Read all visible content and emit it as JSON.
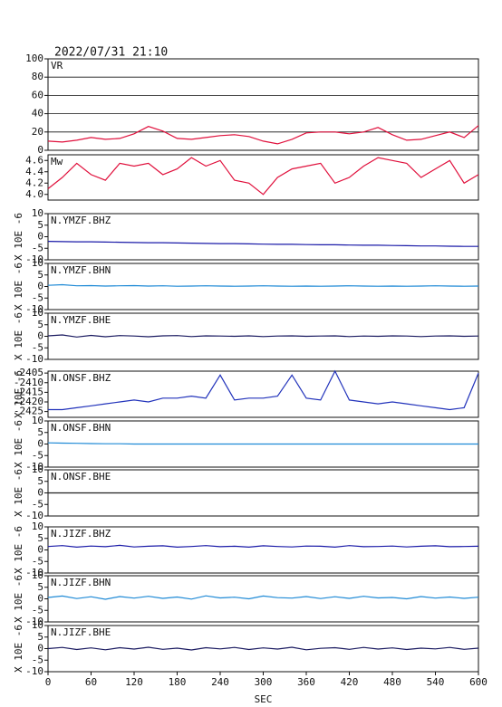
{
  "chart_data": [
    {
      "type": "line",
      "title": "2022/07/31 21:10",
      "label": "VR",
      "color": "#e0103c",
      "grid": true,
      "x": [
        0,
        20,
        40,
        60,
        80,
        100,
        120,
        140,
        160,
        180,
        200,
        220,
        240,
        260,
        280,
        300,
        320,
        340,
        360,
        380,
        400,
        420,
        440,
        460,
        480,
        500,
        520,
        540,
        560,
        580,
        600
      ],
      "values": [
        10,
        9,
        11,
        14,
        12,
        13,
        18,
        26,
        21,
        13,
        12,
        14,
        16,
        17,
        15,
        10,
        7,
        12,
        19,
        20,
        20,
        18,
        20,
        25,
        17,
        11,
        12,
        16,
        20,
        14,
        27
      ],
      "xlim": [
        0,
        600
      ],
      "ylim": [
        0,
        100
      ],
      "yticks": [
        0,
        20,
        40,
        60,
        80,
        100
      ]
    },
    {
      "type": "line",
      "label": "Mw",
      "color": "#e0103c",
      "grid": false,
      "x": [
        0,
        20,
        40,
        60,
        80,
        100,
        120,
        140,
        160,
        180,
        200,
        220,
        240,
        260,
        280,
        300,
        320,
        340,
        360,
        380,
        400,
        420,
        440,
        460,
        480,
        500,
        520,
        540,
        560,
        580,
        600
      ],
      "values": [
        4.1,
        4.3,
        4.55,
        4.35,
        4.25,
        4.55,
        4.5,
        4.55,
        4.35,
        4.45,
        4.65,
        4.5,
        4.6,
        4.25,
        4.2,
        4.0,
        4.3,
        4.45,
        4.5,
        4.55,
        4.2,
        4.3,
        4.5,
        4.65,
        4.6,
        4.55,
        4.3,
        4.45,
        4.6,
        4.2,
        4.35
      ],
      "xlim": [
        0,
        600
      ],
      "ylim": [
        3.9,
        4.7
      ],
      "yticks": [
        {
          "value": 4.0,
          "label": "4.0"
        },
        4.2,
        4.4,
        4.6
      ]
    },
    {
      "type": "line",
      "label": "N.YMZF.BHZ",
      "ylabel": "X 10E -6",
      "color": "#1a1aa8",
      "grid": false,
      "x": [
        0,
        20,
        40,
        60,
        80,
        100,
        120,
        140,
        160,
        180,
        200,
        220,
        240,
        260,
        280,
        300,
        320,
        340,
        360,
        380,
        400,
        420,
        440,
        460,
        480,
        500,
        520,
        540,
        560,
        580,
        600
      ],
      "values": [
        -2,
        -2.1,
        -2.2,
        -2.2,
        -2.3,
        -2.4,
        -2.5,
        -2.6,
        -2.6,
        -2.7,
        -2.8,
        -2.9,
        -3,
        -3,
        -3.1,
        -3.2,
        -3.3,
        -3.3,
        -3.4,
        -3.5,
        -3.5,
        -3.6,
        -3.7,
        -3.7,
        -3.8,
        -3.9,
        -4,
        -4,
        -4.1,
        -4.2,
        -4.2
      ],
      "xlim": [
        0,
        600
      ],
      "ylim": [
        -10,
        10
      ],
      "yticks": [
        -10,
        -5,
        0,
        5,
        10
      ]
    },
    {
      "type": "line",
      "label": "N.YMZF.BHN",
      "ylabel": "X 10E -6",
      "color": "#1f8ad6",
      "grid": false,
      "x": [
        0,
        20,
        40,
        60,
        80,
        100,
        120,
        140,
        160,
        180,
        200,
        220,
        240,
        260,
        280,
        300,
        320,
        340,
        360,
        380,
        400,
        420,
        440,
        460,
        480,
        500,
        520,
        540,
        560,
        580,
        600
      ],
      "values": [
        0.5,
        0.8,
        0.3,
        0.4,
        0.2,
        0.3,
        0.4,
        0.2,
        0.3,
        0.1,
        0.2,
        0.3,
        0.2,
        0.1,
        0.2,
        0.3,
        0.2,
        0.1,
        0.2,
        0.1,
        0.2,
        0.3,
        0.2,
        0.1,
        0.2,
        0.1,
        0.2,
        0.3,
        0.2,
        0.1,
        0.2
      ],
      "xlim": [
        0,
        600
      ],
      "ylim": [
        -10,
        10
      ],
      "yticks": [
        -10,
        -5,
        0,
        5,
        10
      ]
    },
    {
      "type": "line",
      "label": "N.YMZF.BHE",
      "ylabel": "X 10E -6",
      "color": "#1a1a60",
      "grid": false,
      "x": [
        0,
        20,
        40,
        60,
        80,
        100,
        120,
        140,
        160,
        180,
        200,
        220,
        240,
        260,
        280,
        300,
        320,
        340,
        360,
        380,
        400,
        420,
        440,
        460,
        480,
        500,
        520,
        540,
        560,
        580,
        600
      ],
      "values": [
        0.2,
        0.6,
        -0.3,
        0.4,
        -0.2,
        0.3,
        0.1,
        -0.2,
        0.2,
        0.3,
        -0.1,
        0.2,
        0.1,
        0,
        0.2,
        -0.1,
        0.1,
        0.2,
        0,
        0.1,
        0.2,
        -0.1,
        0.1,
        0,
        0.2,
        0.1,
        -0.1,
        0.1,
        0.2,
        0,
        0.1
      ],
      "xlim": [
        0,
        600
      ],
      "ylim": [
        -10,
        10
      ],
      "yticks": [
        -10,
        -5,
        0,
        5,
        10
      ]
    },
    {
      "type": "line",
      "label": "N.ONSF.BHZ",
      "ylabel": "X 10E -6",
      "color": "#2233bb",
      "grid": false,
      "x": [
        0,
        20,
        40,
        60,
        80,
        100,
        120,
        140,
        160,
        180,
        200,
        220,
        240,
        260,
        280,
        300,
        320,
        340,
        360,
        380,
        400,
        420,
        440,
        460,
        480,
        500,
        520,
        540,
        560,
        580,
        600
      ],
      "values": [
        -2424,
        -2424,
        -2423,
        -2422,
        -2421,
        -2420,
        -2419,
        -2420,
        -2418,
        -2418,
        -2417,
        -2418,
        -2406,
        -2419,
        -2418,
        -2418,
        -2417,
        -2406,
        -2418,
        -2419,
        -2404,
        -2419,
        -2420,
        -2421,
        -2420,
        -2421,
        -2422,
        -2423,
        -2424,
        -2423,
        -2405
      ],
      "xlim": [
        0,
        600
      ],
      "ylim": [
        -2428,
        -2404
      ],
      "yticks": [
        -2425,
        -2420,
        -2415,
        -2410,
        -2405
      ]
    },
    {
      "type": "line",
      "label": "N.ONSF.BHN",
      "ylabel": "X 10E -6",
      "color": "#1f8ad6",
      "grid": false,
      "x": [
        0,
        20,
        40,
        60,
        80,
        100,
        120,
        140,
        160,
        180,
        200,
        220,
        240,
        260,
        280,
        300,
        320,
        340,
        360,
        380,
        400,
        420,
        440,
        460,
        480,
        500,
        520,
        540,
        560,
        580,
        600
      ],
      "values": [
        0.5,
        0.4,
        0.3,
        0.2,
        0.1,
        0.1,
        0,
        0,
        0,
        0,
        0,
        0,
        0,
        0,
        0,
        0,
        0,
        0,
        0,
        0,
        0,
        0,
        0,
        0,
        0,
        0,
        0,
        0,
        0,
        0,
        0
      ],
      "xlim": [
        0,
        600
      ],
      "ylim": [
        -10,
        10
      ],
      "yticks": [
        -10,
        -5,
        0,
        5,
        10
      ]
    },
    {
      "type": "line",
      "label": "N.ONSF.BHE",
      "ylabel": "X 10E -6",
      "color": "#202020",
      "grid": false,
      "x": [
        0,
        20,
        40,
        60,
        80,
        100,
        120,
        140,
        160,
        180,
        200,
        220,
        240,
        260,
        280,
        300,
        320,
        340,
        360,
        380,
        400,
        420,
        440,
        460,
        480,
        500,
        520,
        540,
        560,
        580,
        600
      ],
      "values": [
        0,
        0,
        0,
        0,
        0,
        0,
        0,
        0,
        0,
        0,
        0,
        0,
        0,
        0,
        0,
        0,
        0,
        0,
        0,
        0,
        0,
        0,
        0,
        0,
        0,
        0,
        0,
        0,
        0,
        0,
        0
      ],
      "xlim": [
        0,
        600
      ],
      "ylim": [
        -10,
        10
      ],
      "yticks": [
        -10,
        -5,
        0,
        5,
        10
      ]
    },
    {
      "type": "line",
      "label": "N.JIZF.BHZ",
      "ylabel": "X 10E -6",
      "color": "#1a1aa8",
      "grid": false,
      "x": [
        0,
        20,
        40,
        60,
        80,
        100,
        120,
        140,
        160,
        180,
        200,
        220,
        240,
        260,
        280,
        300,
        320,
        340,
        360,
        380,
        400,
        420,
        440,
        460,
        480,
        500,
        520,
        540,
        560,
        580,
        600
      ],
      "values": [
        1.5,
        1.9,
        1.2,
        1.7,
        1.4,
        2,
        1.3,
        1.6,
        1.8,
        1.2,
        1.5,
        1.9,
        1.4,
        1.6,
        1.2,
        1.8,
        1.5,
        1.3,
        1.7,
        1.6,
        1.2,
        1.9,
        1.4,
        1.5,
        1.7,
        1.3,
        1.6,
        1.8,
        1.4,
        1.5,
        1.6
      ],
      "xlim": [
        0,
        600
      ],
      "ylim": [
        -10,
        10
      ],
      "yticks": [
        -10,
        -5,
        0,
        5,
        10
      ]
    },
    {
      "type": "line",
      "label": "N.JIZF.BHN",
      "ylabel": "X 10E -6",
      "color": "#1f8ad6",
      "grid": false,
      "x": [
        0,
        20,
        40,
        60,
        80,
        100,
        120,
        140,
        160,
        180,
        200,
        220,
        240,
        260,
        280,
        300,
        320,
        340,
        360,
        380,
        400,
        420,
        440,
        460,
        480,
        500,
        520,
        540,
        560,
        580,
        600
      ],
      "values": [
        0.6,
        1.2,
        0.1,
        0.9,
        -0.2,
        1,
        0.3,
        1.1,
        0.2,
        0.8,
        -0.1,
        1.3,
        0.4,
        0.7,
        0,
        1.2,
        0.5,
        0.3,
        1,
        0.1,
        0.9,
        0.2,
        1.1,
        0.4,
        0.6,
        0,
        1,
        0.3,
        0.8,
        0.2,
        0.7
      ],
      "xlim": [
        0,
        600
      ],
      "ylim": [
        -10,
        10
      ],
      "yticks": [
        -10,
        -5,
        0,
        5,
        10
      ]
    },
    {
      "type": "line",
      "label": "N.JIZF.BHE",
      "ylabel": "X 10E -6",
      "color": "#1a1a60",
      "grid": false,
      "x": [
        0,
        20,
        40,
        60,
        80,
        100,
        120,
        140,
        160,
        180,
        200,
        220,
        240,
        260,
        280,
        300,
        320,
        340,
        360,
        380,
        400,
        420,
        440,
        460,
        480,
        500,
        520,
        540,
        560,
        580,
        600
      ],
      "values": [
        0,
        0.5,
        -0.4,
        0.3,
        -0.5,
        0.4,
        -0.2,
        0.6,
        -0.3,
        0.2,
        -0.6,
        0.4,
        -0.1,
        0.5,
        -0.4,
        0.3,
        -0.2,
        0.6,
        -0.5,
        0.1,
        0.4,
        -0.3,
        0.5,
        -0.2,
        0.3,
        -0.4,
        0.2,
        -0.1,
        0.5,
        -0.3,
        0.2
      ],
      "xlim": [
        0,
        600
      ],
      "ylim": [
        -10,
        10
      ],
      "yticks": [
        -10,
        -5,
        0,
        5,
        10
      ],
      "xticks": [
        0,
        60,
        120,
        180,
        240,
        300,
        360,
        420,
        480,
        540,
        600
      ],
      "xlabel": "SEC"
    }
  ]
}
